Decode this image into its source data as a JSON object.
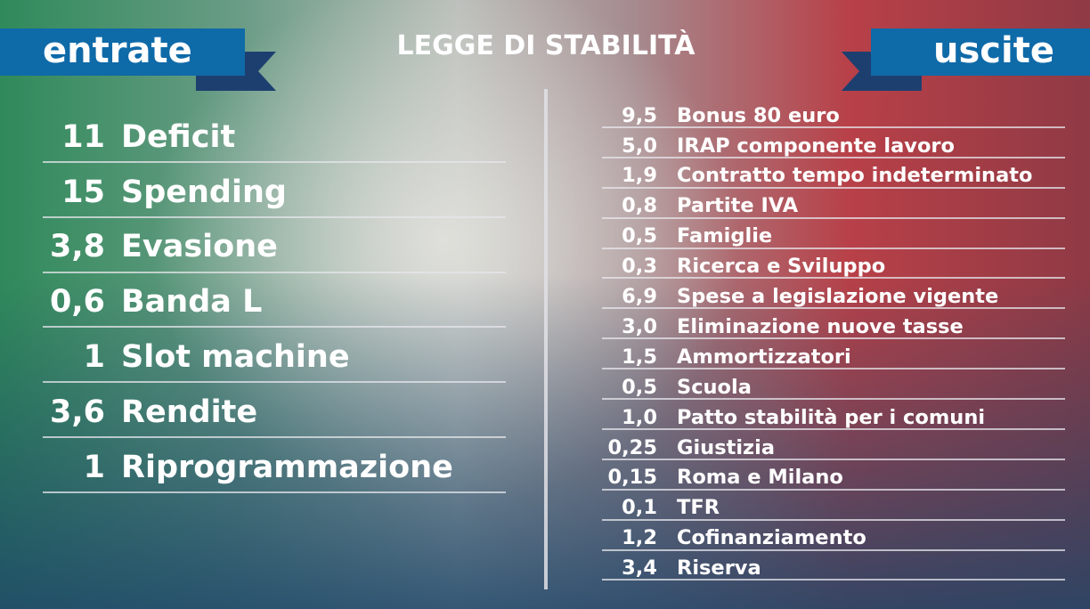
{
  "header": {
    "title": "LEGGE DI STABILITÀ",
    "left_label": "entrate",
    "right_label": "uscite"
  },
  "entrate": {
    "rows": [
      {
        "amount": "11",
        "label": "Deficit"
      },
      {
        "amount": "15",
        "label": "Spending"
      },
      {
        "amount": "3,8",
        "label": "Evasione"
      },
      {
        "amount": "0,6",
        "label": "Banda L"
      },
      {
        "amount": "1",
        "label": "Slot machine"
      },
      {
        "amount": "3,6",
        "label": "Rendite"
      },
      {
        "amount": "1",
        "label": "Riprogrammazione"
      }
    ]
  },
  "uscite": {
    "rows": [
      {
        "amount": "9,5",
        "label": "Bonus 80 euro"
      },
      {
        "amount": "5,0",
        "label": "IRAP componente lavoro"
      },
      {
        "amount": "1,9",
        "label": "Contratto tempo indeterminato"
      },
      {
        "amount": "0,8",
        "label": "Partite IVA"
      },
      {
        "amount": "0,5",
        "label": "Famiglie"
      },
      {
        "amount": "0,3",
        "label": "Ricerca e Sviluppo"
      },
      {
        "amount": "6,9",
        "label": "Spese a legislazione vigente"
      },
      {
        "amount": "3,0",
        "label": "Eliminazione nuove tasse"
      },
      {
        "amount": "1,5",
        "label": "Ammortizzatori"
      },
      {
        "amount": "0,5",
        "label": "Scuola"
      },
      {
        "amount": "1,0",
        "label": "Patto stabilità per i comuni"
      },
      {
        "amount": "0,25",
        "label": "Giustizia"
      },
      {
        "amount": "0,15",
        "label": "Roma e Milano"
      },
      {
        "amount": "0,1",
        "label": "TFR"
      },
      {
        "amount": "1,2",
        "label": "Cofinanziamento"
      },
      {
        "amount": "3,4",
        "label": "Riserva"
      }
    ]
  }
}
